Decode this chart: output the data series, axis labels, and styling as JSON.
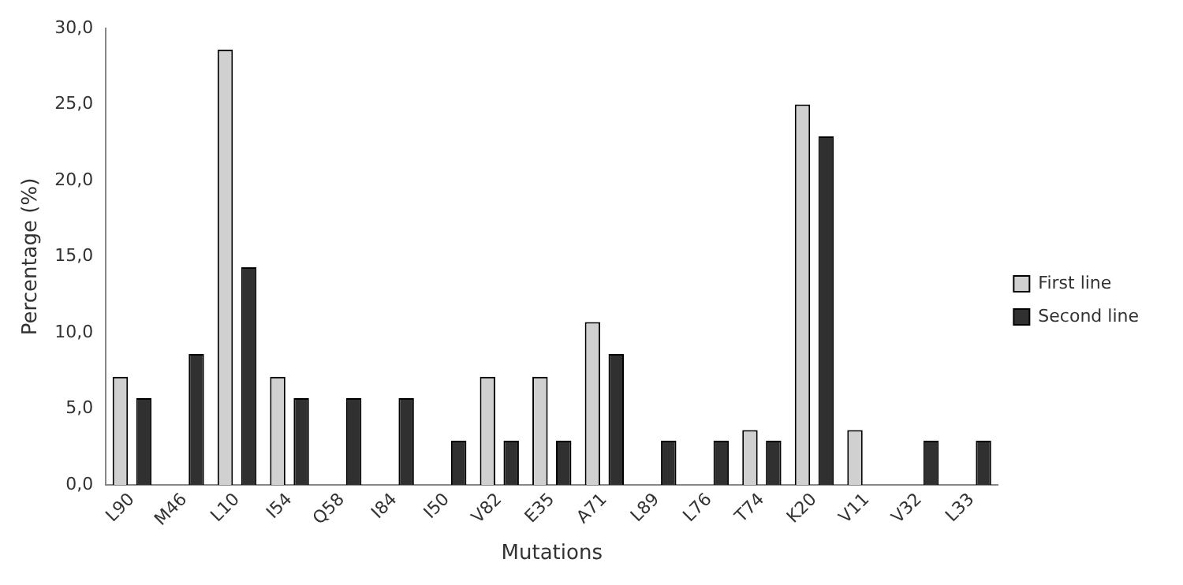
{
  "chart_data": {
    "type": "bar",
    "xlabel": "Mutations",
    "ylabel": "Percentage (%)",
    "categories": [
      "L90",
      "M46",
      "L10",
      "I54",
      "Q58",
      "I84",
      "I50",
      "V82",
      "E35",
      "A71",
      "L89",
      "L76",
      "T74",
      "K20",
      "V11",
      "V32",
      "L33"
    ],
    "series": [
      {
        "name": "First line",
        "color": "#d0d0d0",
        "values": [
          7.1,
          null,
          28.6,
          7.1,
          null,
          null,
          null,
          7.1,
          7.1,
          10.7,
          null,
          null,
          3.6,
          25.0,
          3.6,
          null,
          null
        ]
      },
      {
        "name": "Second line",
        "color": "#303030",
        "values": [
          5.7,
          8.6,
          14.3,
          5.7,
          5.7,
          5.7,
          2.9,
          2.9,
          2.9,
          8.6,
          2.9,
          2.9,
          2.9,
          22.9,
          null,
          2.9,
          2.9
        ]
      }
    ],
    "ylim": [
      0,
      30
    ],
    "yticks": [
      {
        "value": 0,
        "label": "0,0"
      },
      {
        "value": 5,
        "label": "5,0"
      },
      {
        "value": 10,
        "label": "10,0"
      },
      {
        "value": 15,
        "label": "15,0"
      },
      {
        "value": 20,
        "label": "20,0"
      },
      {
        "value": 25,
        "label": "25,0"
      },
      {
        "value": 30,
        "label": "30,0"
      }
    ],
    "grid": false,
    "legend": "right"
  }
}
